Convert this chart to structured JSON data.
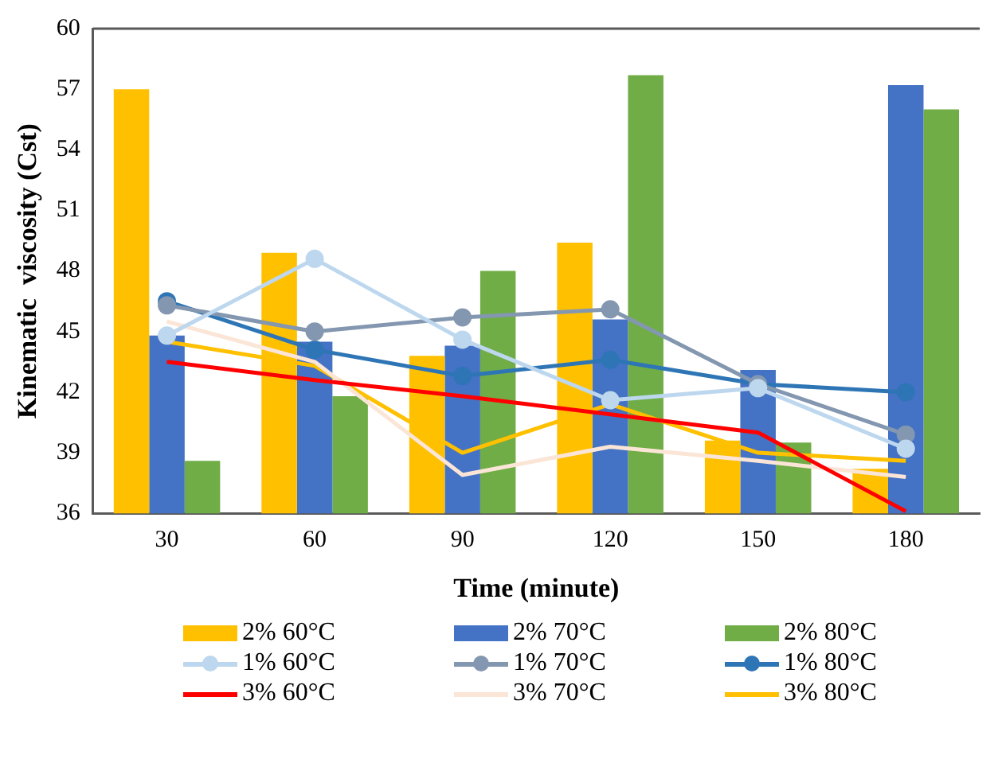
{
  "chart_data": {
    "type": "bar",
    "xlabel": "Time (minute)",
    "ylabel": "Kinematic  viscosity (Cst)",
    "categories": [
      "30",
      "60",
      "90",
      "120",
      "150",
      "180"
    ],
    "ylim": [
      36,
      60
    ],
    "yticks": [
      36,
      39,
      42,
      45,
      48,
      51,
      54,
      57,
      60
    ],
    "grid": false,
    "legend": "bottom",
    "series": [
      {
        "name": "2% 60°C",
        "type": "bar",
        "color": "#ffc000",
        "values": [
          57.0,
          48.9,
          43.8,
          49.4,
          39.6,
          38.2
        ]
      },
      {
        "name": "2% 70°C",
        "type": "bar",
        "color": "#4472c4",
        "values": [
          44.8,
          44.5,
          44.3,
          45.6,
          43.1,
          57.2
        ]
      },
      {
        "name": "2% 80°C",
        "type": "bar",
        "color": "#70ad47",
        "values": [
          38.6,
          41.8,
          48.0,
          57.7,
          39.5,
          56.0
        ]
      },
      {
        "name": "1% 60°C",
        "type": "line",
        "marker": "circle",
        "color": "#bdd7ee",
        "values": [
          44.8,
          48.6,
          44.6,
          41.6,
          42.2,
          39.2
        ]
      },
      {
        "name": "1% 70°C",
        "type": "line",
        "marker": "circle",
        "color": "#8497b0",
        "values": [
          46.3,
          45.0,
          45.7,
          46.1,
          42.4,
          39.9
        ]
      },
      {
        "name": "1% 80°C",
        "type": "line",
        "marker": "circle",
        "color": "#2e75b6",
        "values": [
          46.5,
          44.1,
          42.8,
          43.6,
          42.4,
          42.0
        ]
      },
      {
        "name": "3% 60°C",
        "type": "line",
        "marker": "none",
        "color": "#ff0000",
        "values": [
          43.5,
          42.6,
          41.8,
          40.9,
          40.0,
          36.1
        ]
      },
      {
        "name": "3% 70°C",
        "type": "line",
        "marker": "none",
        "color": "#fbe5d6",
        "values": [
          45.5,
          43.5,
          37.9,
          39.3,
          38.6,
          37.8
        ]
      },
      {
        "name": "3% 80°C",
        "type": "line",
        "marker": "none",
        "color": "#ffc000",
        "values": [
          44.5,
          43.3,
          39.0,
          41.4,
          39.0,
          38.6
        ]
      }
    ]
  }
}
